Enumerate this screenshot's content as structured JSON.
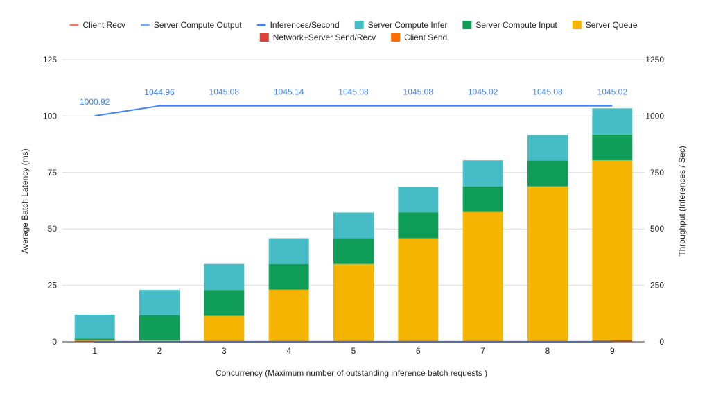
{
  "chart_data": {
    "type": "bar",
    "title": "",
    "xlabel": "Concurrency (Maximum number of outstanding inference batch requests )",
    "ylabel": "Average Batch Latency (ms)",
    "y2label": "Throughput (Inferences / Sec)",
    "categories": [
      "1",
      "2",
      "3",
      "4",
      "5",
      "6",
      "7",
      "8",
      "9"
    ],
    "ylim": [
      0,
      125
    ],
    "y2lim": [
      0,
      1250
    ],
    "yticks": [
      "0",
      "25",
      "50",
      "75",
      "100",
      "125"
    ],
    "y2ticks": [
      "0",
      "250",
      "500",
      "750",
      "1000",
      "1250"
    ],
    "grid": true,
    "legend_position": "top",
    "legend": [
      {
        "name": "Client Recv",
        "color": "#f4766b",
        "kind": "line"
      },
      {
        "name": "Server Compute Output",
        "color": "#7baaf7",
        "kind": "line"
      },
      {
        "name": "Inferences/Second",
        "color": "#4285f4",
        "kind": "line"
      },
      {
        "name": "Server Compute Infer",
        "color": "#46bdc6",
        "kind": "box"
      },
      {
        "name": "Server Compute Input",
        "color": "#0f9d58",
        "kind": "box"
      },
      {
        "name": "Server Queue",
        "color": "#f4b400",
        "kind": "box"
      },
      {
        "name": "Network+Server Send/Recv",
        "color": "#db4437",
        "kind": "box"
      },
      {
        "name": "Client Send",
        "color": "#ff6d01",
        "kind": "box"
      }
    ],
    "stacked_series": [
      {
        "name": "Client Send",
        "color": "#ff6d01",
        "values": [
          0.2,
          0.2,
          0.2,
          0.2,
          0.2,
          0.2,
          0.2,
          0.2,
          0.2
        ]
      },
      {
        "name": "Network+Server Send/Recv",
        "color": "#db4437",
        "values": [
          0.3,
          0.3,
          0.3,
          0.3,
          0.3,
          0.3,
          0.3,
          0.3,
          0.5
        ]
      },
      {
        "name": "Server Queue",
        "color": "#f4b400",
        "values": [
          0.3,
          0.2,
          11,
          22.6,
          34,
          45.4,
          57,
          68.4,
          79.7
        ]
      },
      {
        "name": "Server Compute Input",
        "color": "#0f9d58",
        "values": [
          0.6,
          11.1,
          11.5,
          11.4,
          11.4,
          11.5,
          11.4,
          11.4,
          11.5
        ]
      },
      {
        "name": "Server Compute Infer",
        "color": "#46bdc6",
        "values": [
          10.6,
          11.2,
          11.5,
          11.4,
          11.4,
          11.4,
          11.5,
          11.4,
          11.5
        ]
      }
    ],
    "line_series": [
      {
        "name": "Inferences/Second",
        "axis": "right",
        "color": "#4285f4",
        "values": [
          1000.92,
          1044.96,
          1045.08,
          1045.14,
          1045.08,
          1045.08,
          1045.02,
          1045.08,
          1045.02
        ],
        "labels": [
          "1000.92",
          "1044.96",
          "1045.08",
          "1045.14",
          "1045.08",
          "1045.08",
          "1045.02",
          "1045.08",
          "1045.02"
        ]
      },
      {
        "name": "Client Recv",
        "axis": "left",
        "color": "#f4766b",
        "values": [
          0.05,
          0.05,
          0.05,
          0.05,
          0.05,
          0.05,
          0.05,
          0.05,
          0.05
        ]
      },
      {
        "name": "Server Compute Output",
        "axis": "left",
        "color": "#7baaf7",
        "values": [
          0.02,
          0.02,
          0.02,
          0.02,
          0.02,
          0.02,
          0.02,
          0.02,
          0.02
        ]
      }
    ]
  }
}
